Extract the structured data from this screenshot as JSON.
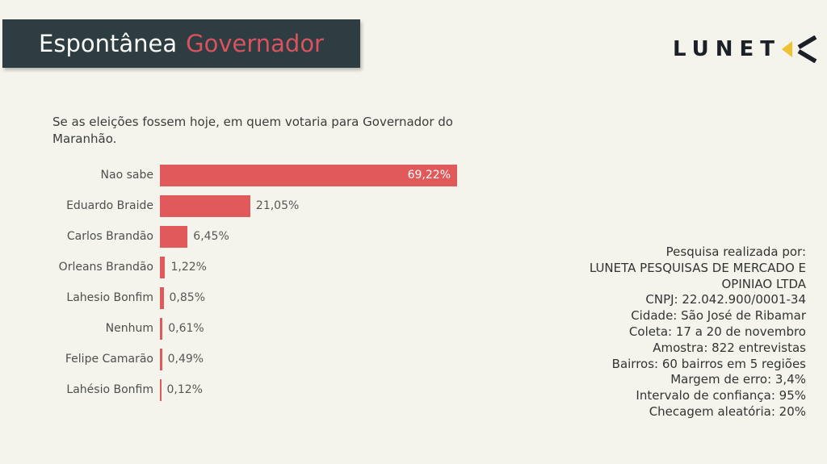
{
  "header": {
    "word_primary": "Espontânea",
    "word_accent": "Governador"
  },
  "logo": {
    "text": "LUNET",
    "icon": "luneta-angle-a-icon"
  },
  "question": {
    "lines": [
      "Se as eleições fossem hoje, em quem votaria para Governador do",
      "Maranhão."
    ]
  },
  "chart_data": {
    "type": "bar",
    "orientation": "horizontal",
    "title": "Espontânea Governador",
    "categories": [
      "Nao sabe",
      "Eduardo Braide",
      "Carlos Brandão",
      "Orleans Brandão",
      "Lahesio Bonfim",
      "Nenhum",
      "Felipe Camarão",
      "Lahésio Bonfim"
    ],
    "values": [
      69.22,
      21.05,
      6.45,
      1.22,
      0.85,
      0.61,
      0.49,
      0.12
    ],
    "value_labels": [
      "69,22%",
      "21,05%",
      "6,45%",
      "1,22%",
      "0,85%",
      "0,61%",
      "0,49%",
      "0,12%"
    ],
    "bar_color": "#e05a5c",
    "xlim": [
      0,
      72
    ],
    "grid": false,
    "legend": false,
    "value_label_style": "largest bar labeled inside in white, others outside in gray"
  },
  "info": {
    "lines": [
      "Pesquisa realizada por:",
      "LUNETA PESQUISAS DE MERCADO E",
      "OPINIAO LTDA",
      "CNPJ: 22.042.900/0001-34",
      "Cidade: São José de Ribamar",
      "Coleta: 17 a 20 de novembro",
      "Amostra: 822 entrevistas",
      "Bairros: 60 bairros em 5 regiões",
      "Margem de erro: 3,4%",
      "Intervalo de confiança: 95%",
      "Checagem aleatória: 20%"
    ]
  },
  "colors": {
    "background": "#f5f4ec",
    "header_bg": "#2e3d41",
    "accent_red": "#d8535e",
    "bar_red": "#e05a5c",
    "logo_dark": "#1b1f27",
    "logo_yellow": "#efc32f"
  }
}
